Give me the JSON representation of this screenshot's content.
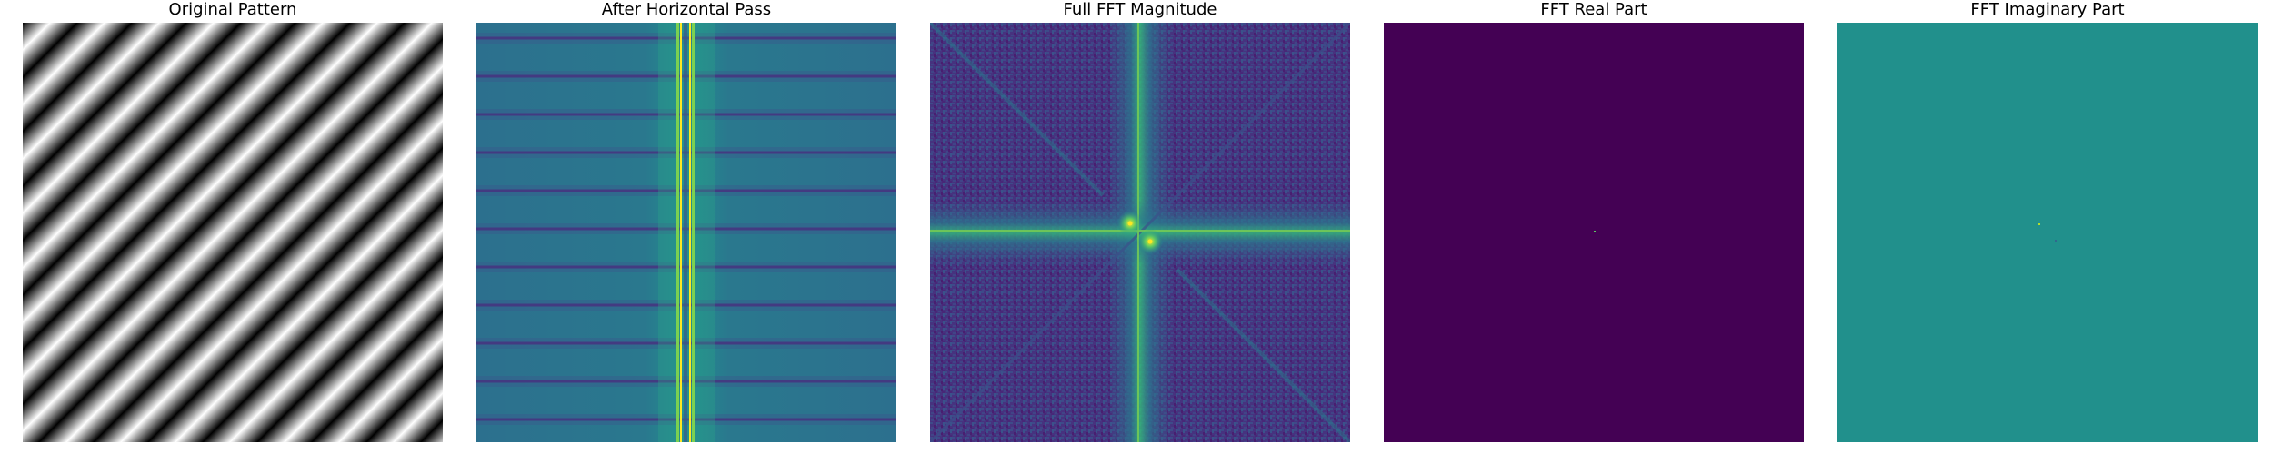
{
  "figure": {
    "panels": [
      {
        "id": "original",
        "title": "Original Pattern"
      },
      {
        "id": "horizontal",
        "title": "After Horizontal Pass"
      },
      {
        "id": "magnitude",
        "title": "Full FFT Magnitude"
      },
      {
        "id": "real",
        "title": "FFT Real Part"
      },
      {
        "id": "imag",
        "title": "FFT Imaginary Part"
      }
    ]
  },
  "colors": {
    "viridis_dark": "#440154",
    "viridis_purple": "#46337f",
    "viridis_blue": "#3b528b",
    "viridis_teal": "#21918c",
    "viridis_green": "#5ec962",
    "viridis_yellow": "#fde725",
    "gray_black": "#000000",
    "gray_white": "#ffffff"
  },
  "chart_data": [
    {
      "type": "heatmap",
      "title": "Original Pattern",
      "colormap": "gray",
      "description_pattern": "diagonal sinusoidal stripes",
      "stripe_count": 11,
      "axes": "off"
    },
    {
      "type": "heatmap",
      "title": "After Horizontal Pass",
      "colormap": "viridis",
      "axes": "off"
    },
    {
      "type": "heatmap",
      "title": "Full FFT Magnitude",
      "colormap": "viridis",
      "axes": "off"
    },
    {
      "type": "heatmap",
      "title": "FFT Real Part",
      "colormap": "viridis",
      "axes": "off"
    },
    {
      "type": "heatmap",
      "title": "FFT Imaginary Part",
      "colormap": "viridis",
      "axes": "off"
    }
  ]
}
